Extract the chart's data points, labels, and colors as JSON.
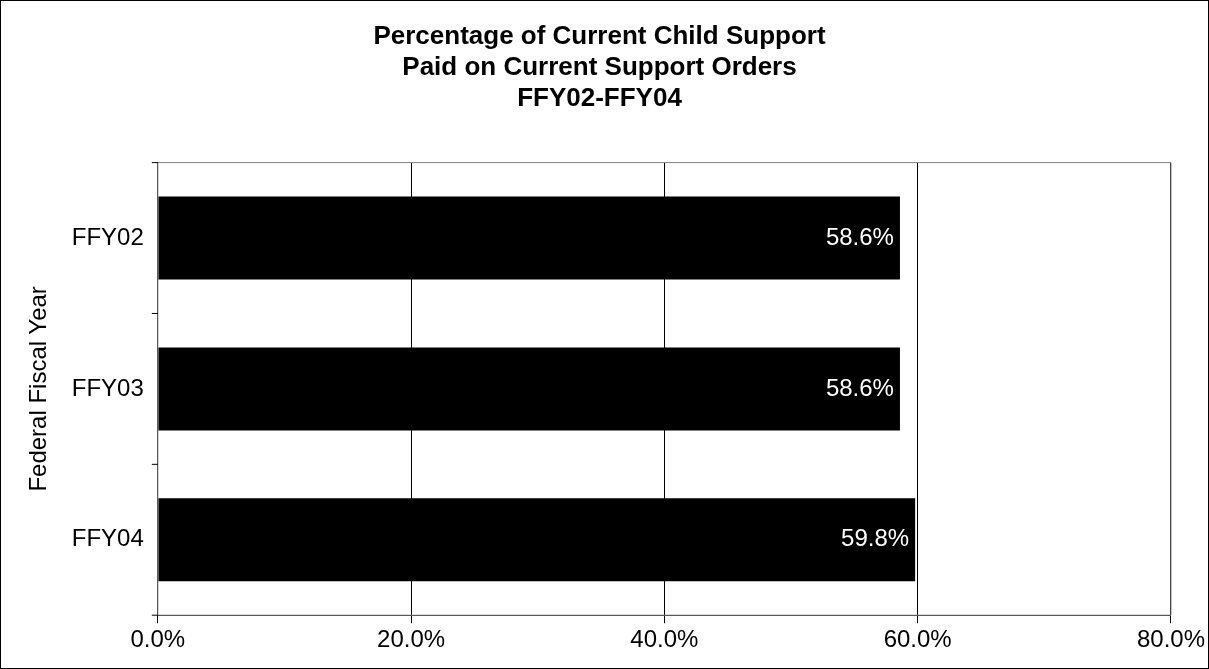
{
  "chart_data": {
    "type": "bar",
    "orientation": "horizontal",
    "title": "Percentage of Current Child Support\nPaid on Current Support Orders\nFFY02-FFY04",
    "ylabel": "Federal Fiscal Year",
    "categories": [
      "FFY02",
      "FFY03",
      "FFY04"
    ],
    "values": [
      58.6,
      58.6,
      59.8
    ],
    "color": "#000000",
    "value_labels": [
      "58.6%",
      "58.6%",
      "59.8%"
    ],
    "xlim": [
      0,
      80
    ],
    "xticks": [
      {
        "value": 0,
        "label": "0.0%"
      },
      {
        "value": 20,
        "label": "20.0%"
      },
      {
        "value": 40,
        "label": "40.0%"
      },
      {
        "value": 60,
        "label": "60.0%"
      },
      {
        "value": 80,
        "label": "80.0%"
      }
    ],
    "grid": "x",
    "legend": false
  }
}
